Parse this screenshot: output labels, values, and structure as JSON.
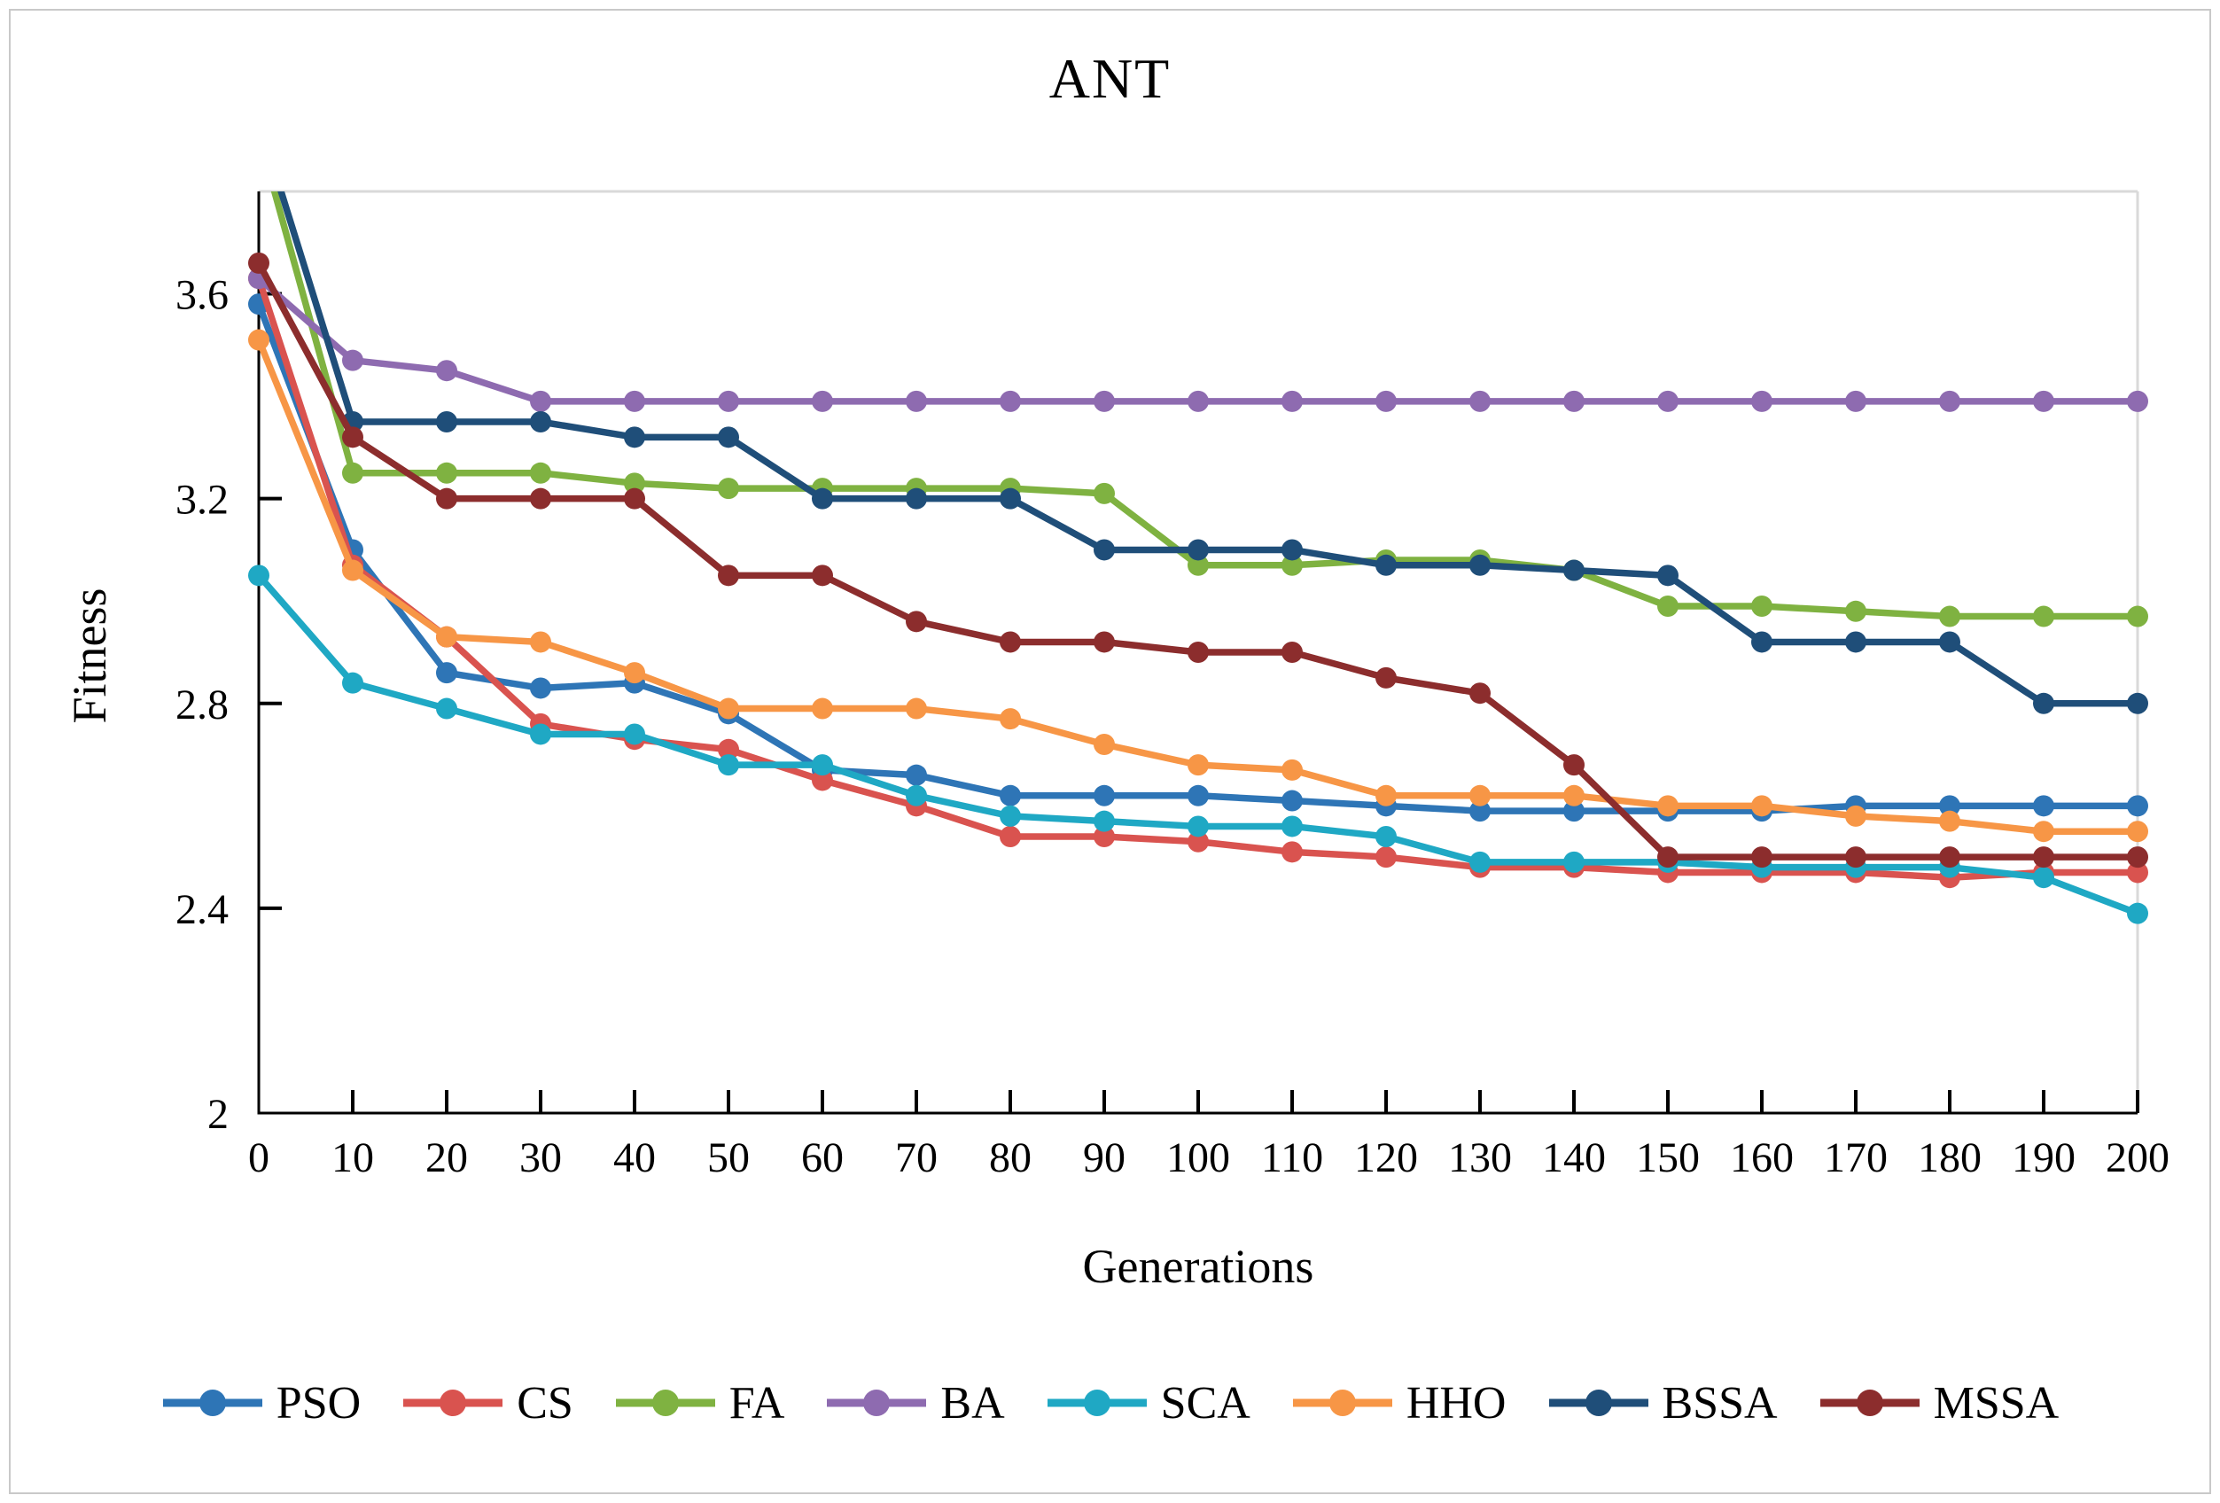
{
  "figure": {
    "title": "ANT",
    "x_axis_label": "Generations",
    "y_axis_label": "Fitness"
  },
  "chart_data": {
    "type": "line",
    "title": "ANT",
    "xlabel": "Generations",
    "ylabel": "Fitness",
    "x": [
      0,
      10,
      20,
      30,
      40,
      50,
      60,
      70,
      80,
      90,
      100,
      110,
      120,
      130,
      140,
      150,
      160,
      170,
      180,
      190,
      200
    ],
    "xlim": [
      0,
      200
    ],
    "ylim": [
      2,
      3.8
    ],
    "xticks": [
      0,
      10,
      20,
      30,
      40,
      50,
      60,
      70,
      80,
      90,
      100,
      110,
      120,
      130,
      140,
      150,
      160,
      170,
      180,
      190,
      200
    ],
    "yticks": [
      2,
      2.4,
      2.8,
      3.2,
      3.6
    ],
    "ytick_labels": [
      "2",
      "2.4",
      "2.8",
      "3.2",
      "3.6"
    ],
    "grid": false,
    "legend_position": "bottom",
    "marker": "circle",
    "axis_color": "#000000",
    "plot_border_color": "#d9d9d9",
    "series": [
      {
        "name": "PSO",
        "color": "#2E75B6",
        "values": [
          3.58,
          3.1,
          2.86,
          2.83,
          2.84,
          2.78,
          2.67,
          2.66,
          2.62,
          2.62,
          2.62,
          2.61,
          2.6,
          2.59,
          2.59,
          2.59,
          2.59,
          2.6,
          2.6,
          2.6,
          2.6
        ]
      },
      {
        "name": "CS",
        "color": "#D9534F",
        "values": [
          3.63,
          3.07,
          2.93,
          2.76,
          2.73,
          2.71,
          2.65,
          2.6,
          2.54,
          2.54,
          2.53,
          2.51,
          2.5,
          2.48,
          2.48,
          2.47,
          2.47,
          2.47,
          2.46,
          2.47,
          2.47
        ]
      },
      {
        "name": "FA",
        "color": "#7FB241",
        "values": [
          3.91,
          3.25,
          3.25,
          3.25,
          3.23,
          3.22,
          3.22,
          3.22,
          3.22,
          3.21,
          3.07,
          3.07,
          3.08,
          3.08,
          3.06,
          2.99,
          2.99,
          2.98,
          2.97,
          2.97,
          2.97
        ]
      },
      {
        "name": "BA",
        "color": "#8E6BB0",
        "values": [
          3.63,
          3.47,
          3.45,
          3.39,
          3.39,
          3.39,
          3.39,
          3.39,
          3.39,
          3.39,
          3.39,
          3.39,
          3.39,
          3.39,
          3.39,
          3.39,
          3.39,
          3.39,
          3.39,
          3.39,
          3.39
        ]
      },
      {
        "name": "SCA",
        "color": "#1FA8C4",
        "values": [
          3.05,
          2.84,
          2.79,
          2.74,
          2.74,
          2.68,
          2.68,
          2.62,
          2.58,
          2.57,
          2.56,
          2.56,
          2.54,
          2.49,
          2.49,
          2.49,
          2.48,
          2.48,
          2.48,
          2.46,
          2.39
        ]
      },
      {
        "name": "HHO",
        "color": "#F79646",
        "values": [
          3.51,
          3.06,
          2.93,
          2.92,
          2.86,
          2.79,
          2.79,
          2.79,
          2.77,
          2.72,
          2.68,
          2.67,
          2.62,
          2.62,
          2.62,
          2.6,
          2.6,
          2.58,
          2.57,
          2.55,
          2.55
        ]
      },
      {
        "name": "BSSA",
        "color": "#1F4E79",
        "values": [
          3.94,
          3.35,
          3.35,
          3.35,
          3.32,
          3.32,
          3.2,
          3.2,
          3.2,
          3.1,
          3.1,
          3.1,
          3.07,
          3.07,
          3.06,
          3.05,
          2.92,
          2.92,
          2.92,
          2.8,
          2.8
        ]
      },
      {
        "name": "MSSA",
        "color": "#8C2D2D",
        "values": [
          3.66,
          3.32,
          3.2,
          3.2,
          3.2,
          3.05,
          3.05,
          2.96,
          2.92,
          2.92,
          2.9,
          2.9,
          2.85,
          2.82,
          2.68,
          2.5,
          2.5,
          2.5,
          2.5,
          2.5,
          2.5
        ]
      }
    ]
  }
}
